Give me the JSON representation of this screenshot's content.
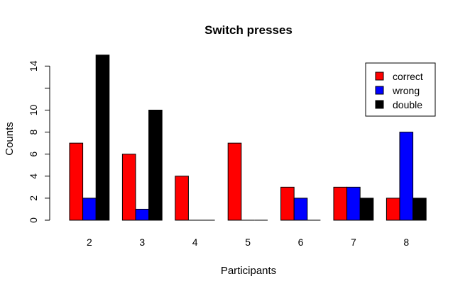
{
  "chart_data": {
    "type": "bar",
    "title": "Switch presses",
    "xlabel": "Participants",
    "ylabel": "Counts",
    "categories": [
      "2",
      "3",
      "4",
      "5",
      "6",
      "7",
      "8"
    ],
    "series": [
      {
        "name": "correct",
        "color": "#ff0000",
        "values": [
          7,
          6,
          4,
          7,
          3,
          3,
          2
        ]
      },
      {
        "name": "wrong",
        "color": "#0000ff",
        "values": [
          2,
          1,
          0,
          0,
          2,
          3,
          8
        ]
      },
      {
        "name": "double",
        "color": "#000000",
        "values": [
          15,
          10,
          0,
          0,
          0,
          2,
          2
        ]
      }
    ],
    "yticks": [
      0,
      2,
      4,
      6,
      8,
      10,
      12,
      14
    ],
    "ytick_labels": [
      "0",
      "2",
      "4",
      "6",
      "8",
      "10",
      "",
      "14"
    ],
    "ylim": [
      0,
      15
    ],
    "legend_position": "top-right",
    "grid": false
  }
}
